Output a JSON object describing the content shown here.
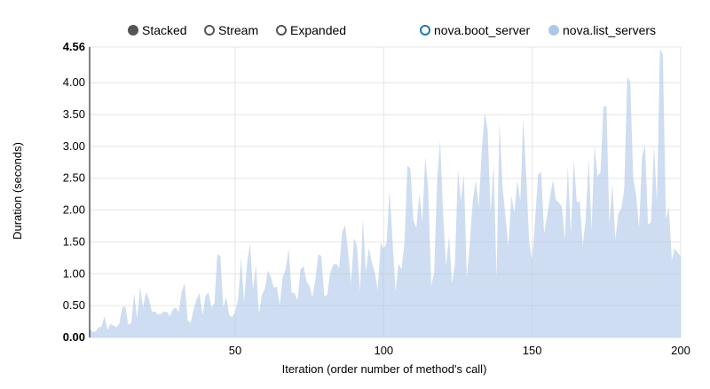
{
  "controls": [
    {
      "label": "Stacked",
      "selected": true
    },
    {
      "label": "Stream",
      "selected": false
    },
    {
      "label": "Expanded",
      "selected": false
    }
  ],
  "legend": [
    {
      "label": "nova.boot_server",
      "color": "#1f77b4",
      "enabled": false
    },
    {
      "label": "nova.list_servers",
      "color": "#aec7e8",
      "enabled": true
    }
  ],
  "chart_data": {
    "type": "area",
    "stacked": true,
    "xlabel": "Iteration (order number of method's call)",
    "ylabel": "Duration (seconds)",
    "xlim": [
      1,
      200
    ],
    "ylim": [
      0,
      4.56
    ],
    "x_ticks": [
      "50",
      "100",
      "150",
      "200"
    ],
    "y_ticks": [
      "0.00",
      "0.50",
      "1.00",
      "1.50",
      "2.00",
      "2.50",
      "3.00",
      "3.50",
      "4.00",
      "4.56"
    ],
    "grid": true,
    "legend_position": "top-right",
    "series": [
      {
        "name": "nova.list_servers",
        "color": "#aec7e8",
        "values": [
          0.14,
          0.09,
          0.09,
          0.16,
          0.17,
          0.33,
          0.12,
          0.21,
          0.19,
          0.16,
          0.22,
          0.47,
          0.49,
          0.2,
          0.23,
          0.69,
          0.3,
          0.79,
          0.47,
          0.72,
          0.6,
          0.4,
          0.41,
          0.36,
          0.37,
          0.41,
          0.4,
          0.33,
          0.44,
          0.47,
          0.4,
          0.72,
          0.85,
          0.27,
          0.23,
          0.44,
          0.6,
          0.7,
          0.35,
          0.65,
          0.71,
          0.47,
          0.53,
          1.31,
          1.28,
          0.47,
          0.63,
          0.35,
          0.32,
          0.4,
          0.6,
          1.26,
          0.56,
          1.16,
          1.48,
          0.74,
          1.14,
          0.37,
          0.67,
          0.77,
          1.05,
          0.95,
          0.78,
          0.8,
          0.51,
          0.95,
          1.07,
          1.4,
          0.7,
          0.7,
          0.58,
          1.07,
          1.12,
          0.88,
          0.81,
          0.63,
          0.91,
          1.31,
          1.28,
          0.65,
          0.67,
          1.02,
          1.14,
          1.16,
          1.09,
          1.65,
          1.77,
          1.35,
          0.86,
          1.56,
          1.44,
          0.72,
          1.88,
          1.02,
          1.4,
          1.19,
          1.02,
          0.74,
          1.49,
          1.4,
          1.49,
          2.33,
          1.49,
          0.72,
          1.16,
          1.07,
          1.49,
          2.7,
          2.65,
          1.84,
          1.72,
          2.26,
          1.81,
          2.84,
          2.33,
          0.81,
          1.02,
          2.47,
          3.09,
          1.95,
          1.12,
          1.6,
          0.84,
          1.16,
          2.65,
          2.14,
          2.56,
          0.93,
          1.49,
          2.14,
          2.47,
          2.05,
          2.93,
          3.53,
          3.26,
          1.95,
          2.72,
          0.93,
          3.4,
          2.37,
          1.91,
          1.44,
          2.23,
          1.95,
          2.47,
          2.14,
          3.44,
          2.51,
          1.49,
          1.21,
          1.86,
          2.56,
          2.6,
          1.63,
          1.91,
          2.21,
          2.47,
          2.16,
          2.12,
          2.05,
          1.53,
          2.7,
          1.63,
          2.79,
          2.12,
          2.14,
          1.44,
          1.86,
          2.81,
          1.67,
          3.02,
          2.53,
          2.6,
          3.63,
          3.63,
          1.77,
          2.42,
          1.53,
          1.95,
          2.02,
          2.33,
          4.09,
          4.02,
          2.51,
          2.23,
          1.72,
          2.84,
          3.02,
          1.77,
          1.81,
          3.02,
          2.12,
          4.53,
          4.44,
          1.86,
          2.05,
          1.21,
          1.4,
          1.33,
          1.28
        ]
      }
    ]
  }
}
